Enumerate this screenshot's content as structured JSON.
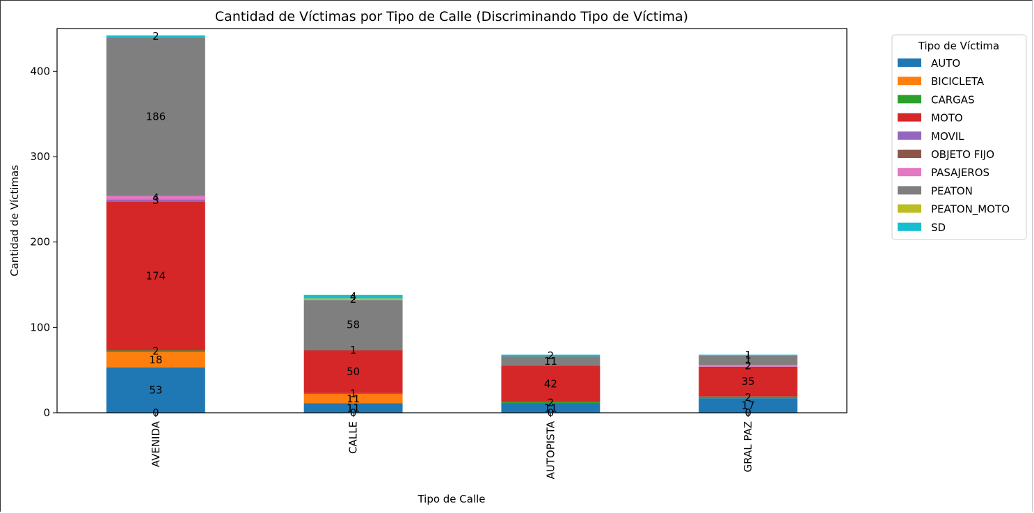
{
  "chart_data": {
    "type": "bar",
    "stacked": true,
    "title": "Cantidad de Víctimas por Tipo de Calle (Discriminando Tipo de Víctima)",
    "xlabel": "Tipo de Calle",
    "ylabel": "Cantidad de Víctimas",
    "ylim": [
      0,
      450
    ],
    "yticks": [
      0,
      100,
      200,
      300,
      400
    ],
    "grid": false,
    "legend_title": "Tipo de Víctima",
    "legend_position": "outside-right",
    "categories": [
      "AVENIDA",
      "CALLE",
      "AUTOPISTA",
      "GRAL PAZ"
    ],
    "series": [
      {
        "name": "AUTO",
        "color": "#1f77b4",
        "values": [
          53,
          11,
          11,
          17
        ]
      },
      {
        "name": "BICICLETA",
        "color": "#ff7f0e",
        "values": [
          18,
          11,
          0,
          0
        ]
      },
      {
        "name": "CARGAS",
        "color": "#2ca02c",
        "values": [
          2,
          1,
          2,
          2
        ]
      },
      {
        "name": "MOTO",
        "color": "#d62728",
        "values": [
          174,
          50,
          42,
          35
        ]
      },
      {
        "name": "MOVIL",
        "color": "#9467bd",
        "values": [
          3,
          0,
          0,
          0
        ]
      },
      {
        "name": "OBJETO FIJO",
        "color": "#8c564b",
        "values": [
          0,
          1,
          0,
          0
        ]
      },
      {
        "name": "PASAJEROS",
        "color": "#e377c2",
        "values": [
          4,
          0,
          0,
          2
        ]
      },
      {
        "name": "PEATON",
        "color": "#7f7f7f",
        "values": [
          186,
          58,
          11,
          11
        ]
      },
      {
        "name": "PEATON_MOTO",
        "color": "#bcbd22",
        "values": [
          0,
          2,
          0,
          0
        ]
      },
      {
        "name": "SD",
        "color": "#17becf",
        "values": [
          2,
          4,
          2,
          1
        ]
      }
    ],
    "bar_labels": [
      [
        "0",
        "53",
        "18",
        "2",
        "174",
        "3",
        "4",
        "186",
        "2"
      ],
      [
        "0",
        "11",
        "11",
        "1",
        "50",
        "1",
        "58",
        "2",
        "4"
      ],
      [
        "0",
        "11",
        "2",
        "42",
        "11",
        "2"
      ],
      [
        "0",
        "17",
        "2",
        "35",
        "2",
        "1",
        "1"
      ]
    ]
  }
}
